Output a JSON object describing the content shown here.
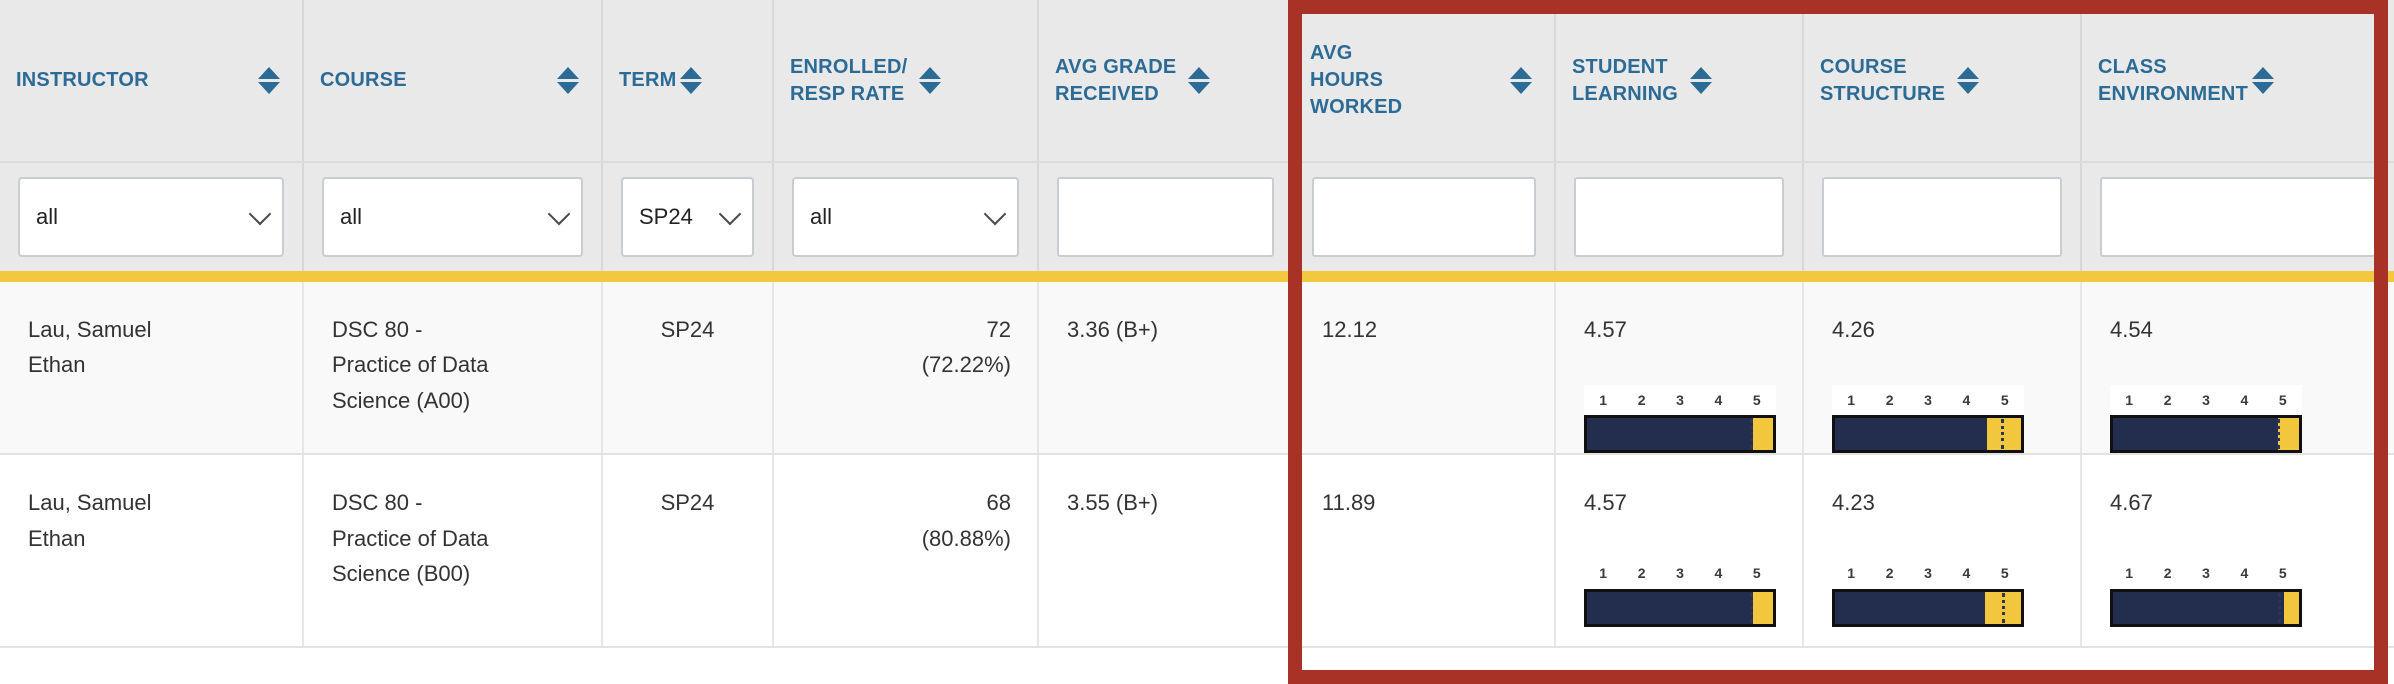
{
  "columns": [
    {
      "id": "instructor",
      "label": "INSTRUCTOR"
    },
    {
      "id": "course",
      "label": "COURSE"
    },
    {
      "id": "term",
      "label": "TERM"
    },
    {
      "id": "enrolled",
      "label": "ENROLLED/\nRESP RATE"
    },
    {
      "id": "avg_grade",
      "label": "AVG GRADE\nRECEIVED"
    },
    {
      "id": "avg_hours",
      "label": "AVG\nHOURS\nWORKED"
    },
    {
      "id": "student_learning",
      "label": "STUDENT\nLEARNING"
    },
    {
      "id": "course_structure",
      "label": "COURSE\nSTRUCTURE"
    },
    {
      "id": "class_environment",
      "label": "CLASS\nENVIRONMENT"
    }
  ],
  "filters": {
    "instructor": {
      "type": "select",
      "value": "all"
    },
    "course": {
      "type": "select",
      "value": "all"
    },
    "term": {
      "type": "select",
      "value": "SP24"
    },
    "enrolled": {
      "type": "select",
      "value": "all"
    },
    "avg_grade": {
      "type": "text",
      "value": ""
    },
    "avg_hours": {
      "type": "text",
      "value": ""
    },
    "student_learning": {
      "type": "text",
      "value": ""
    },
    "course_structure": {
      "type": "text",
      "value": ""
    },
    "class_environment": {
      "type": "text",
      "value": ""
    }
  },
  "scale_labels": [
    "1",
    "2",
    "3",
    "4",
    "5"
  ],
  "rows": [
    {
      "instructor": "Lau, Samuel\nEthan",
      "course": "DSC 80 -\nPractice of Data\nScience (A00)",
      "term": "SP24",
      "enrolled": "72\n(72.22%)",
      "avg_grade": "3.36 (B+)",
      "avg_hours": "12.12",
      "ratings": {
        "student_learning": {
          "value": "4.57",
          "scale_min": 1,
          "scale_max": 5,
          "marker": 4.5
        },
        "course_structure": {
          "value": "4.26",
          "scale_min": 1,
          "scale_max": 5,
          "marker": 4.56
        },
        "class_environment": {
          "value": "4.54",
          "scale_min": 1,
          "scale_max": 5,
          "marker": 4.52
        }
      }
    },
    {
      "instructor": "Lau, Samuel\nEthan",
      "course": "DSC 80 -\nPractice of Data\nScience (B00)",
      "term": "SP24",
      "enrolled": "68\n(80.88%)",
      "avg_grade": "3.55 (B+)",
      "avg_hours": "11.89",
      "ratings": {
        "student_learning": {
          "value": "4.57",
          "scale_min": 1,
          "scale_max": 5,
          "marker": 4.5
        },
        "course_structure": {
          "value": "4.23",
          "scale_min": 1,
          "scale_max": 5,
          "marker": 4.6
        },
        "class_environment": {
          "value": "4.67",
          "scale_min": 1,
          "scale_max": 5,
          "marker": 4.55
        }
      }
    }
  ],
  "colors": {
    "header_text": "#2b6b96",
    "divider_yellow": "#f3c73e",
    "bar_navy": "#232e4e",
    "bar_yellow": "#f2c73d",
    "highlight_red": "#a93226"
  }
}
